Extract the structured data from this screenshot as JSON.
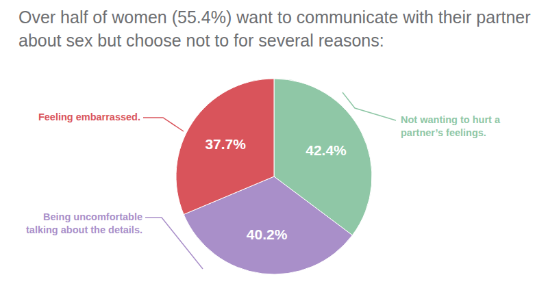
{
  "chart_data": {
    "type": "pie",
    "title": "Over half of women (55.4%) want to communicate with their partner about sex but choose not to for several reasons:",
    "categories": [
      "Not wanting to hurt a partner’s feelings.",
      "Being uncomfortable talking about the details.",
      "Feeling embarrassed."
    ],
    "values": [
      42.4,
      40.2,
      37.7
    ],
    "value_labels": [
      "42.4%",
      "40.2%",
      "37.7%"
    ],
    "colors": [
      "#8fc7a6",
      "#a98fc9",
      "#d9545b"
    ],
    "data_labels": true
  }
}
